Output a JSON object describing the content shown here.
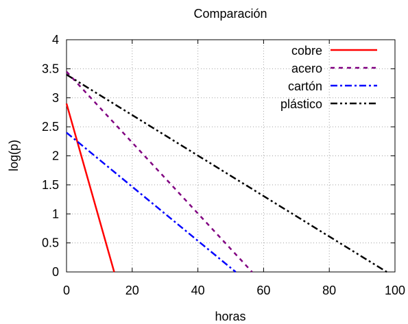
{
  "chart_data": {
    "type": "line",
    "title": "Comparación",
    "xlabel": "horas",
    "ylabel": "log(p)",
    "xlim": [
      0,
      100
    ],
    "ylim": [
      0,
      4
    ],
    "xticks": [
      0,
      20,
      40,
      60,
      80,
      100
    ],
    "yticks": [
      0,
      0.5,
      1,
      1.5,
      2,
      2.5,
      3,
      3.5,
      4
    ],
    "grid": true,
    "legend_position": "top-right",
    "series": [
      {
        "name": "cobre",
        "color": "#ff0000",
        "dash": "solid",
        "x": [
          0,
          14.5
        ],
        "y": [
          2.9,
          0
        ]
      },
      {
        "name": "acero",
        "color": "#800080",
        "dash": "dashed",
        "x": [
          0,
          56.5
        ],
        "y": [
          3.45,
          0
        ]
      },
      {
        "name": "cartón",
        "color": "#0000ff",
        "dash": "dash-dot",
        "x": [
          0,
          51.5
        ],
        "y": [
          2.4,
          0
        ]
      },
      {
        "name": "plástico",
        "color": "#000000",
        "dash": "dash-dot-dot",
        "x": [
          0,
          97.5
        ],
        "y": [
          3.4,
          0
        ]
      }
    ]
  }
}
